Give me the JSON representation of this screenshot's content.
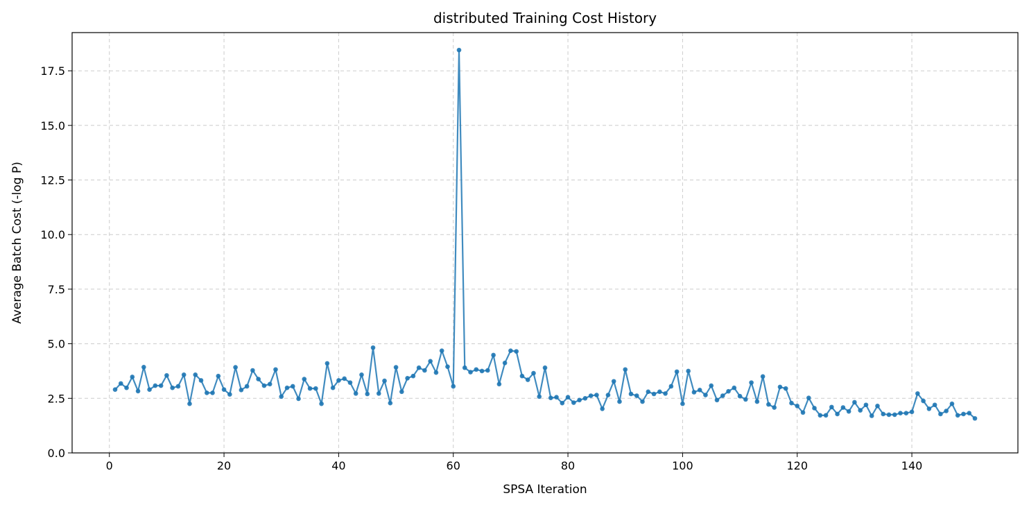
{
  "chart_data": {
    "type": "line",
    "title": "distributed Training Cost History",
    "xlabel": "SPSA Iteration",
    "ylabel": "Average Batch Cost (-log P)",
    "xlim": [
      -6.5,
      158.5
    ],
    "ylim": [
      0,
      19.25
    ],
    "xticks": [
      0,
      20,
      40,
      60,
      80,
      100,
      120,
      140
    ],
    "xtick_labels": [
      "0",
      "20",
      "40",
      "60",
      "80",
      "100",
      "120",
      "140"
    ],
    "yticks": [
      0,
      2.5,
      5,
      7.5,
      10,
      12.5,
      15,
      17.5
    ],
    "ytick_labels": [
      "0.0",
      "2.5",
      "5.0",
      "7.5",
      "10.0",
      "12.5",
      "15.0",
      "17.5"
    ],
    "grid": true,
    "color": "#1f77b4",
    "marker": "circle",
    "x_start": 1,
    "series": [
      {
        "values": [
          2.9,
          3.18,
          2.98,
          3.48,
          2.83,
          3.93,
          2.9,
          3.08,
          3.08,
          3.55,
          2.98,
          3.05,
          3.58,
          2.25,
          3.58,
          3.32,
          2.75,
          2.75,
          3.52,
          2.9,
          2.68,
          3.92,
          2.88,
          3.05,
          3.78,
          3.38,
          3.08,
          3.15,
          3.82,
          2.58,
          2.98,
          3.05,
          2.48,
          3.38,
          2.95,
          2.95,
          2.25,
          4.1,
          2.98,
          3.32,
          3.4,
          3.22,
          2.72,
          3.58,
          2.7,
          4.82,
          2.72,
          3.3,
          2.28,
          3.92,
          2.8,
          3.42,
          3.52,
          3.9,
          3.78,
          4.2,
          3.68,
          4.68,
          3.95,
          3.05,
          18.45,
          3.9,
          3.7,
          3.82,
          3.75,
          3.78,
          4.48,
          3.15,
          4.12,
          4.68,
          4.65,
          3.52,
          3.35,
          3.65,
          2.58,
          3.9,
          2.52,
          2.55,
          2.28,
          2.55,
          2.3,
          2.42,
          2.5,
          2.62,
          2.65,
          2.02,
          2.65,
          3.28,
          2.35,
          3.82,
          2.7,
          2.62,
          2.35,
          2.8,
          2.7,
          2.8,
          2.72,
          3.05,
          3.72,
          2.25,
          3.75,
          2.78,
          2.88,
          2.65,
          3.08,
          2.42,
          2.62,
          2.82,
          2.98,
          2.6,
          2.45,
          3.22,
          2.35,
          3.5,
          2.22,
          2.08,
          3.02,
          2.95,
          2.28,
          2.15,
          1.85,
          2.52,
          2.05,
          1.72,
          1.72,
          2.1,
          1.78,
          2.08,
          1.9,
          2.32,
          1.95,
          2.2,
          1.7,
          2.15,
          1.78,
          1.75,
          1.75,
          1.82,
          1.82,
          1.88,
          2.72,
          2.38,
          2.02,
          2.2,
          1.78,
          1.92,
          2.25,
          1.72,
          1.78,
          1.82,
          1.58
        ]
      }
    ]
  }
}
